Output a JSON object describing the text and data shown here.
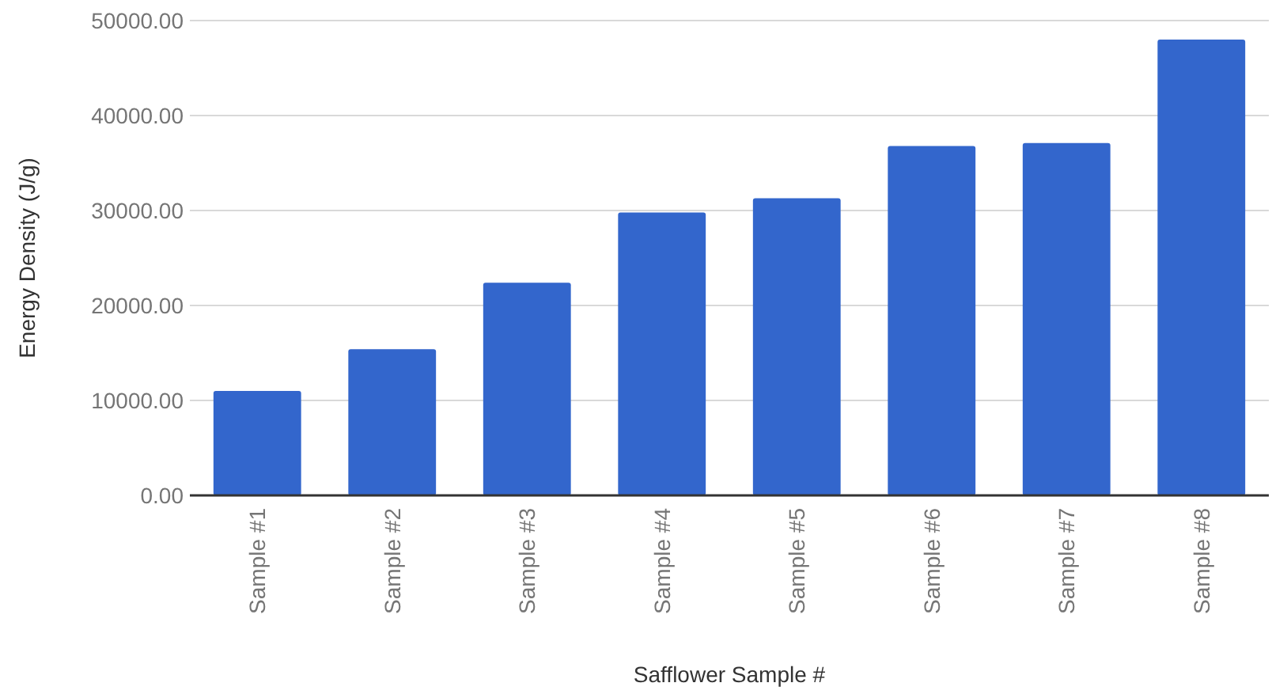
{
  "chart_data": {
    "type": "bar",
    "xlabel": "Safflower Sample #",
    "ylabel": "Energy Density (J/g)",
    "categories": [
      "Sample #1",
      "Sample #2",
      "Sample #3",
      "Sample #4",
      "Sample #5",
      "Sample #6",
      "Sample #7",
      "Sample #8"
    ],
    "values": [
      11000,
      15400,
      22400,
      29800,
      31300,
      36800,
      37100,
      48000
    ],
    "color": "#3366cc",
    "ylim": [
      0,
      50000
    ],
    "yticks": [
      {
        "value": 0,
        "label": "0.00"
      },
      {
        "value": 10000,
        "label": "10000.00"
      },
      {
        "value": 20000,
        "label": "20000.00"
      },
      {
        "value": 30000,
        "label": "30000.00"
      },
      {
        "value": 40000,
        "label": "40000.00"
      },
      {
        "value": 50000,
        "label": "50000.00"
      }
    ],
    "grid": "y"
  }
}
